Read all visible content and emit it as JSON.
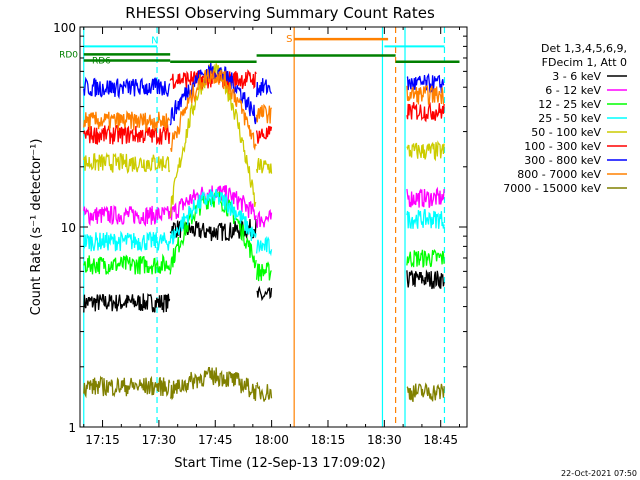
{
  "chart_data": {
    "type": "line",
    "title": "RHESSI Observing Summary Count Rates",
    "xlabel": "Start Time (12-Sep-13 17:09:02)",
    "ylabel": "Count Rate (s⁻¹ detector⁻¹)",
    "xlim": [
      1029,
      1132
    ],
    "ylim": [
      1,
      100
    ],
    "yscale": "log",
    "x_ticks": [
      {
        "value": 1035,
        "label": "17:15"
      },
      {
        "value": 1050,
        "label": "17:30"
      },
      {
        "value": 1065,
        "label": "17:45"
      },
      {
        "value": 1080,
        "label": "18:00"
      },
      {
        "value": 1095,
        "label": "18:15"
      },
      {
        "value": 1110,
        "label": "18:30"
      },
      {
        "value": 1125,
        "label": "18:45"
      }
    ],
    "y_ticks": [
      {
        "value": 1,
        "label": "1"
      },
      {
        "value": 10,
        "label": "10"
      },
      {
        "value": 100,
        "label": "100"
      }
    ],
    "legend": {
      "placement": "right",
      "header": [
        "Det 1,3,4,5,6,9,",
        "FDecim 1, Att 0"
      ],
      "entries": [
        {
          "label": "3 - 6 keV",
          "color": "#000000"
        },
        {
          "label": "6 - 12 keV",
          "color": "#ff00ff"
        },
        {
          "label": "12 - 25 keV",
          "color": "#00ff00"
        },
        {
          "label": "25 - 50 keV",
          "color": "#00ffff"
        },
        {
          "label": "50 - 100 keV",
          "color": "#cccc00"
        },
        {
          "label": "100 - 300 keV",
          "color": "#ff0000"
        },
        {
          "label": "300 - 800 keV",
          "color": "#0000ff"
        },
        {
          "label": "800 - 7000 keV",
          "color": "#ff8000"
        },
        {
          "label": "7000 - 15000 keV",
          "color": "#808000"
        }
      ]
    },
    "segments": [
      {
        "start": 1030,
        "end": 1053,
        "shape": "flat"
      },
      {
        "start": 1053,
        "end": 1076,
        "shape": "hump"
      },
      {
        "start": 1076,
        "end": 1080,
        "shape": "flat"
      },
      {
        "start": 1116,
        "end": 1126,
        "shape": "flat"
      }
    ],
    "series": [
      {
        "color": "#000000",
        "levels": [
          4.2,
          10,
          4.5,
          5.5
        ],
        "hump_peak": 9.5
      },
      {
        "color": "#ff00ff",
        "levels": [
          11.5,
          11.5,
          11,
          14
        ],
        "hump_peak": 15
      },
      {
        "color": "#00ff00",
        "levels": [
          6.5,
          6.5,
          6,
          7
        ],
        "hump_peak": 14
      },
      {
        "color": "#00ffff",
        "levels": [
          8.5,
          8.5,
          8,
          11
        ],
        "hump_peak": 14
      },
      {
        "color": "#cccc00",
        "levels": [
          21,
          12,
          20,
          24
        ],
        "hump_peak": 60
      },
      {
        "color": "#ff0000",
        "levels": [
          29,
          55,
          29,
          38
        ],
        "hump_peak": 55
      },
      {
        "color": "#0000ff",
        "levels": [
          50,
          35,
          50,
          52
        ],
        "hump_peak": 60
      },
      {
        "color": "#ff8000",
        "levels": [
          34,
          25,
          37,
          46
        ],
        "hump_peak": 58
      },
      {
        "color": "#808000",
        "levels": [
          1.6,
          1.5,
          1.5,
          1.5
        ],
        "hump_peak": 1.8
      }
    ],
    "annotations": {
      "night_bars": [
        {
          "label": "N",
          "start": 1030,
          "end": 1049.5,
          "value": 80,
          "color": "#00ffff"
        },
        {
          "label": "",
          "start": 1110,
          "end": 1126,
          "value": 80,
          "color": "#00ffff"
        }
      ],
      "saa_bar": {
        "label": "S",
        "start": 1086,
        "end": 1111,
        "value": 87,
        "color": "#ff8000"
      },
      "rd_lines": [
        {
          "label": "RD0",
          "start": 1030,
          "end": 1053,
          "value": 73,
          "color": "#008000"
        },
        {
          "label": "RD6",
          "start": 1030,
          "end": 1053,
          "value": 68,
          "color": "#008000"
        },
        {
          "label": "",
          "start": 1053,
          "end": 1076,
          "value": 67,
          "color": "#008000"
        },
        {
          "label": "",
          "start": 1076,
          "end": 1113,
          "value": 72,
          "color": "#008000"
        },
        {
          "label": "",
          "start": 1113,
          "end": 1130,
          "value": 67,
          "color": "#008000"
        }
      ],
      "vlines": [
        {
          "x": 1030,
          "color": "#00ffff",
          "dash": false
        },
        {
          "x": 1049.5,
          "color": "#00ffff",
          "dash": true
        },
        {
          "x": 1086,
          "color": "#ff8000",
          "dash": false
        },
        {
          "x": 1109.5,
          "color": "#00ffff",
          "dash": false
        },
        {
          "x": 1113,
          "color": "#ff8000",
          "dash": true
        },
        {
          "x": 1115.5,
          "color": "#00ffff",
          "dash": false
        },
        {
          "x": 1126,
          "color": "#00ffff",
          "dash": true
        }
      ]
    }
  },
  "footer": {
    "timestamp": "22-Oct-2021 07:50"
  }
}
